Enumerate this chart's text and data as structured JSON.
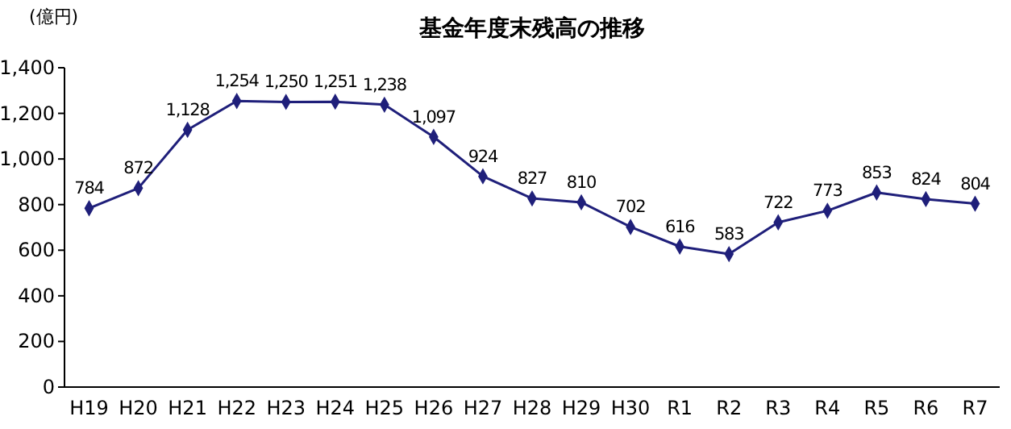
{
  "chart_data": {
    "type": "line",
    "title": "基金年度末残高の推移",
    "ylabel": "(億円)",
    "categories": [
      "H19",
      "H20",
      "H21",
      "H22",
      "H23",
      "H24",
      "H25",
      "H26",
      "H27",
      "H28",
      "H29",
      "H30",
      "R1",
      "R2",
      "R3",
      "R4",
      "R5",
      "R6",
      "R7"
    ],
    "series": [
      {
        "color": "#1f1f7a",
        "values": [
          784,
          872,
          1128,
          1254,
          1250,
          1251,
          1238,
          1097,
          924,
          827,
          810,
          702,
          616,
          583,
          722,
          773,
          853,
          824,
          804
        ],
        "value_labels": [
          "784",
          "872",
          "1,128",
          "1,254",
          "1,250",
          "1,251",
          "1,238",
          "1,097",
          "924",
          "827",
          "810",
          "702",
          "616",
          "583",
          "722",
          "773",
          "853",
          "824",
          "804"
        ]
      }
    ],
    "ylim": [
      0,
      1400
    ],
    "yticks": [
      0,
      200,
      400,
      600,
      800,
      {
        "value": 1000,
        "label": "1,000"
      },
      {
        "value": 1200,
        "label": "1,200"
      },
      {
        "value": 1400,
        "label": "1,400"
      }
    ],
    "marker": "diamond",
    "line_style": "solid",
    "grid": false
  }
}
